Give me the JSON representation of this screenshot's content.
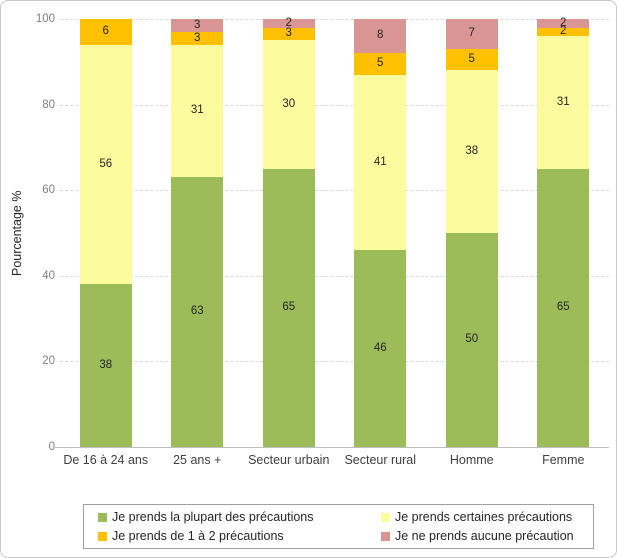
{
  "frame": {
    "background": "#ffffff",
    "border_color": "#c9c9c9"
  },
  "chart_data": {
    "type": "bar",
    "stacked": true,
    "title": "",
    "ylabel": "Pourcentage %",
    "ylim": [
      0,
      100
    ],
    "yticks": [
      0,
      20,
      40,
      60,
      80,
      100
    ],
    "grid": "horizontal-dashed",
    "gridline_color": "#d9d9d9",
    "axis_line_color": "#bfbfbf",
    "tick_label_color": "#808080",
    "legend_position": "bottom-box",
    "categories": [
      "De 16 à 24 ans",
      "25 ans +",
      "Secteur urbain",
      "Secteur rural",
      "Homme",
      "Femme"
    ],
    "series": [
      {
        "name": "Je prends la plupart des précautions",
        "color": "#9CBB59",
        "values": [
          38,
          63,
          65,
          46,
          50,
          65
        ]
      },
      {
        "name": "Je prends certaines précautions",
        "color": "#FCFB9D",
        "values": [
          56,
          31,
          30,
          41,
          38,
          31
        ]
      },
      {
        "name": "Je prends de 1 à 2 précautions",
        "color": "#FFC000",
        "values": [
          6,
          3,
          3,
          5,
          5,
          2
        ]
      },
      {
        "name": "Je ne prends aucune précaution",
        "color": "#D99694",
        "values": [
          0,
          3,
          2,
          8,
          7,
          2
        ]
      }
    ]
  }
}
